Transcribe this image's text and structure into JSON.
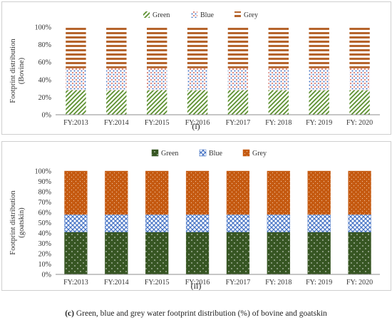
{
  "colors": {
    "green_hatch": "#5b8f2e",
    "blue_dots": "#4472c4",
    "grey_stripes": "#b5642c",
    "green_fill": "#375623",
    "blue_fill": "#4472c4",
    "grey_fill": "#c55a11",
    "axis": "#8c8c8c"
  },
  "chart_data": [
    {
      "type": "bar",
      "stacked": true,
      "categories": [
        "FY:2013",
        "FY:2014",
        "FY:2015",
        "FY:2016",
        "FY:2017",
        "FY: 2018",
        "FY: 2019",
        "FY: 2020"
      ],
      "series": [
        {
          "name": "Green",
          "values": [
            28,
            28,
            28,
            28,
            28,
            28,
            28,
            28
          ]
        },
        {
          "name": "Blue",
          "values": [
            25,
            25,
            25,
            25,
            25,
            25,
            25,
            25
          ]
        },
        {
          "name": "Grey",
          "values": [
            47,
            47,
            47,
            47,
            47,
            47,
            47,
            47
          ]
        }
      ],
      "ylabel": "Footprint distribution (Bovine)",
      "ylabel_lines": [
        "Footprint distribution",
        "(Bovine)"
      ],
      "yticks": [
        "0%",
        "20%",
        "40%",
        "60%",
        "80%",
        "100%"
      ],
      "ylim": [
        0,
        100
      ],
      "legend": "top-center",
      "grid": false,
      "panel_label": "(i)"
    },
    {
      "type": "bar",
      "stacked": true,
      "categories": [
        "FY:2013",
        "FY:2014",
        "FY:2015",
        "FY:2016",
        "FY:2017",
        "FY: 2018",
        "FY: 2019",
        "FY: 2020"
      ],
      "series": [
        {
          "name": "Green",
          "values": [
            41,
            41,
            41,
            41,
            41,
            41,
            41,
            41
          ]
        },
        {
          "name": "Blue",
          "values": [
            17,
            17,
            17,
            17,
            17,
            17,
            17,
            17
          ]
        },
        {
          "name": "Grey",
          "values": [
            42,
            42,
            42,
            42,
            42,
            42,
            42,
            42
          ]
        }
      ],
      "ylabel": "Footprint distribution (goatskin)",
      "ylabel_lines": [
        "Footprint distribution",
        "(goatskin)"
      ],
      "yticks": [
        "0%",
        "10%",
        "20%",
        "30%",
        "40%",
        "50%",
        "60%",
        "70%",
        "80%",
        "90%",
        "100%"
      ],
      "ylim": [
        0,
        100
      ],
      "legend": "top-center",
      "grid": false,
      "panel_label": "(ii)"
    }
  ],
  "caption": {
    "prefix": "(c)",
    "text": " Green, blue and grey water footprint distribution (%) of bovine and goatskin"
  }
}
